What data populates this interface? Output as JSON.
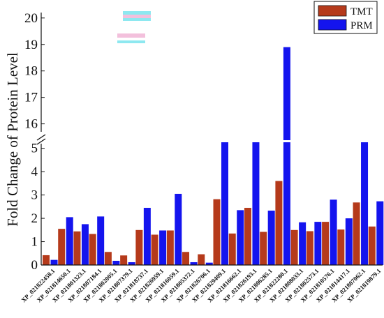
{
  "chart_data": {
    "type": "bar",
    "title": "",
    "xlabel": "",
    "ylabel": "Fold Change of Protein Level",
    "axis_break": {
      "lower_range": [
        0,
        5.2
      ],
      "upper_range": [
        15.7,
        20.1
      ]
    },
    "lower_ticks": [
      "0",
      "1",
      "2",
      "3",
      "4",
      "5"
    ],
    "upper_ticks": [
      "16",
      "17",
      "18",
      "19",
      "20"
    ],
    "legend_position": "top-right",
    "grid": false,
    "categories": [
      "XP_021822458.1",
      "XP_021814650.1",
      "XP_021801323.1",
      "XP_021807184.1",
      "XP_021802005.1",
      "XP_021807379.1",
      "XP_021818737.1",
      "XP_021826959.1",
      "XP_021816059.1",
      "XP_021805372.1",
      "XP_021826706.1",
      "XP_021829409.1",
      "XP_021816662.1",
      "XP_021826193.1",
      "XP_021806285.1",
      "XP_021822280.1",
      "XP_021808033.1",
      "XP_021802573.1",
      "XP_021810576.1",
      "XP_021814417.1",
      "XP_021807062.1",
      "XP_021819879.1"
    ],
    "series": [
      {
        "name": "TMT",
        "color": "#b53a1b",
        "values": [
          0.42,
          1.55,
          1.44,
          1.33,
          0.56,
          0.41,
          1.5,
          1.3,
          1.48,
          0.56,
          0.46,
          2.82,
          1.35,
          2.45,
          1.42,
          3.6,
          1.5,
          1.45,
          1.85,
          1.52,
          2.68,
          1.65
        ]
      },
      {
        "name": "PRM",
        "color": "#1414ee",
        "values": [
          0.22,
          2.05,
          1.75,
          2.08,
          0.18,
          0.12,
          2.45,
          1.48,
          3.05,
          0.12,
          0.1,
          5.4,
          2.35,
          5.4,
          2.33,
          18.9,
          1.83,
          1.85,
          2.8,
          2.0,
          5.4,
          2.73
        ]
      }
    ]
  },
  "colors": {
    "axis": "#111111",
    "background": "#ffffff",
    "artifact_cyan": "#8ee8f0",
    "artifact_pink": "#f3c0dc"
  }
}
